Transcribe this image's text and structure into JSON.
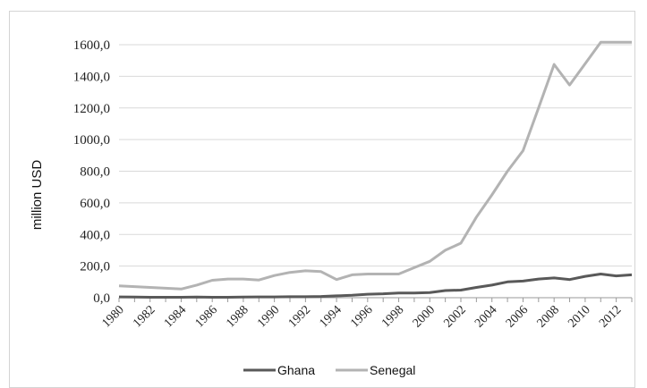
{
  "chart_data": {
    "type": "line",
    "title": "",
    "xlabel": "",
    "ylabel": "million USD",
    "ylim": [
      0,
      1600
    ],
    "grid": true,
    "legend_position": "bottom",
    "y_ticks": [
      "0,0",
      "200,0",
      "400,0",
      "600,0",
      "800,0",
      "1000,0",
      "1200,0",
      "1400,0",
      "1600,0"
    ],
    "x_ticks": [
      "1980",
      "1982",
      "1984",
      "1986",
      "1988",
      "1990",
      "1992",
      "1994",
      "1996",
      "1998",
      "2000",
      "2002",
      "2004",
      "2006",
      "2008",
      "2010",
      "2012"
    ],
    "x": [
      1980,
      1981,
      1982,
      1983,
      1984,
      1985,
      1986,
      1987,
      1988,
      1989,
      1990,
      1991,
      1992,
      1993,
      1994,
      1995,
      1996,
      1997,
      1998,
      1999,
      2000,
      2001,
      2002,
      2003,
      2004,
      2005,
      2006,
      2007,
      2008,
      2009,
      2010,
      2011,
      2012,
      2013
    ],
    "series": [
      {
        "name": "Ghana",
        "color": "#595959",
        "values": [
          5,
          4,
          3,
          3,
          3,
          4,
          3,
          3,
          4,
          5,
          5,
          6,
          6,
          8,
          12,
          15,
          22,
          25,
          30,
          30,
          33,
          45,
          48,
          65,
          80,
          100,
          105,
          118,
          125,
          115,
          135,
          150,
          138,
          145
        ]
      },
      {
        "name": "Senegal",
        "color": "#b3b3b3",
        "values": [
          75,
          70,
          65,
          60,
          55,
          80,
          110,
          118,
          118,
          112,
          140,
          160,
          170,
          165,
          115,
          145,
          150,
          150,
          150,
          190,
          230,
          300,
          345,
          510,
          650,
          800,
          930,
          1200,
          1475,
          1345,
          1480,
          1615,
          1615,
          1615
        ]
      }
    ]
  }
}
